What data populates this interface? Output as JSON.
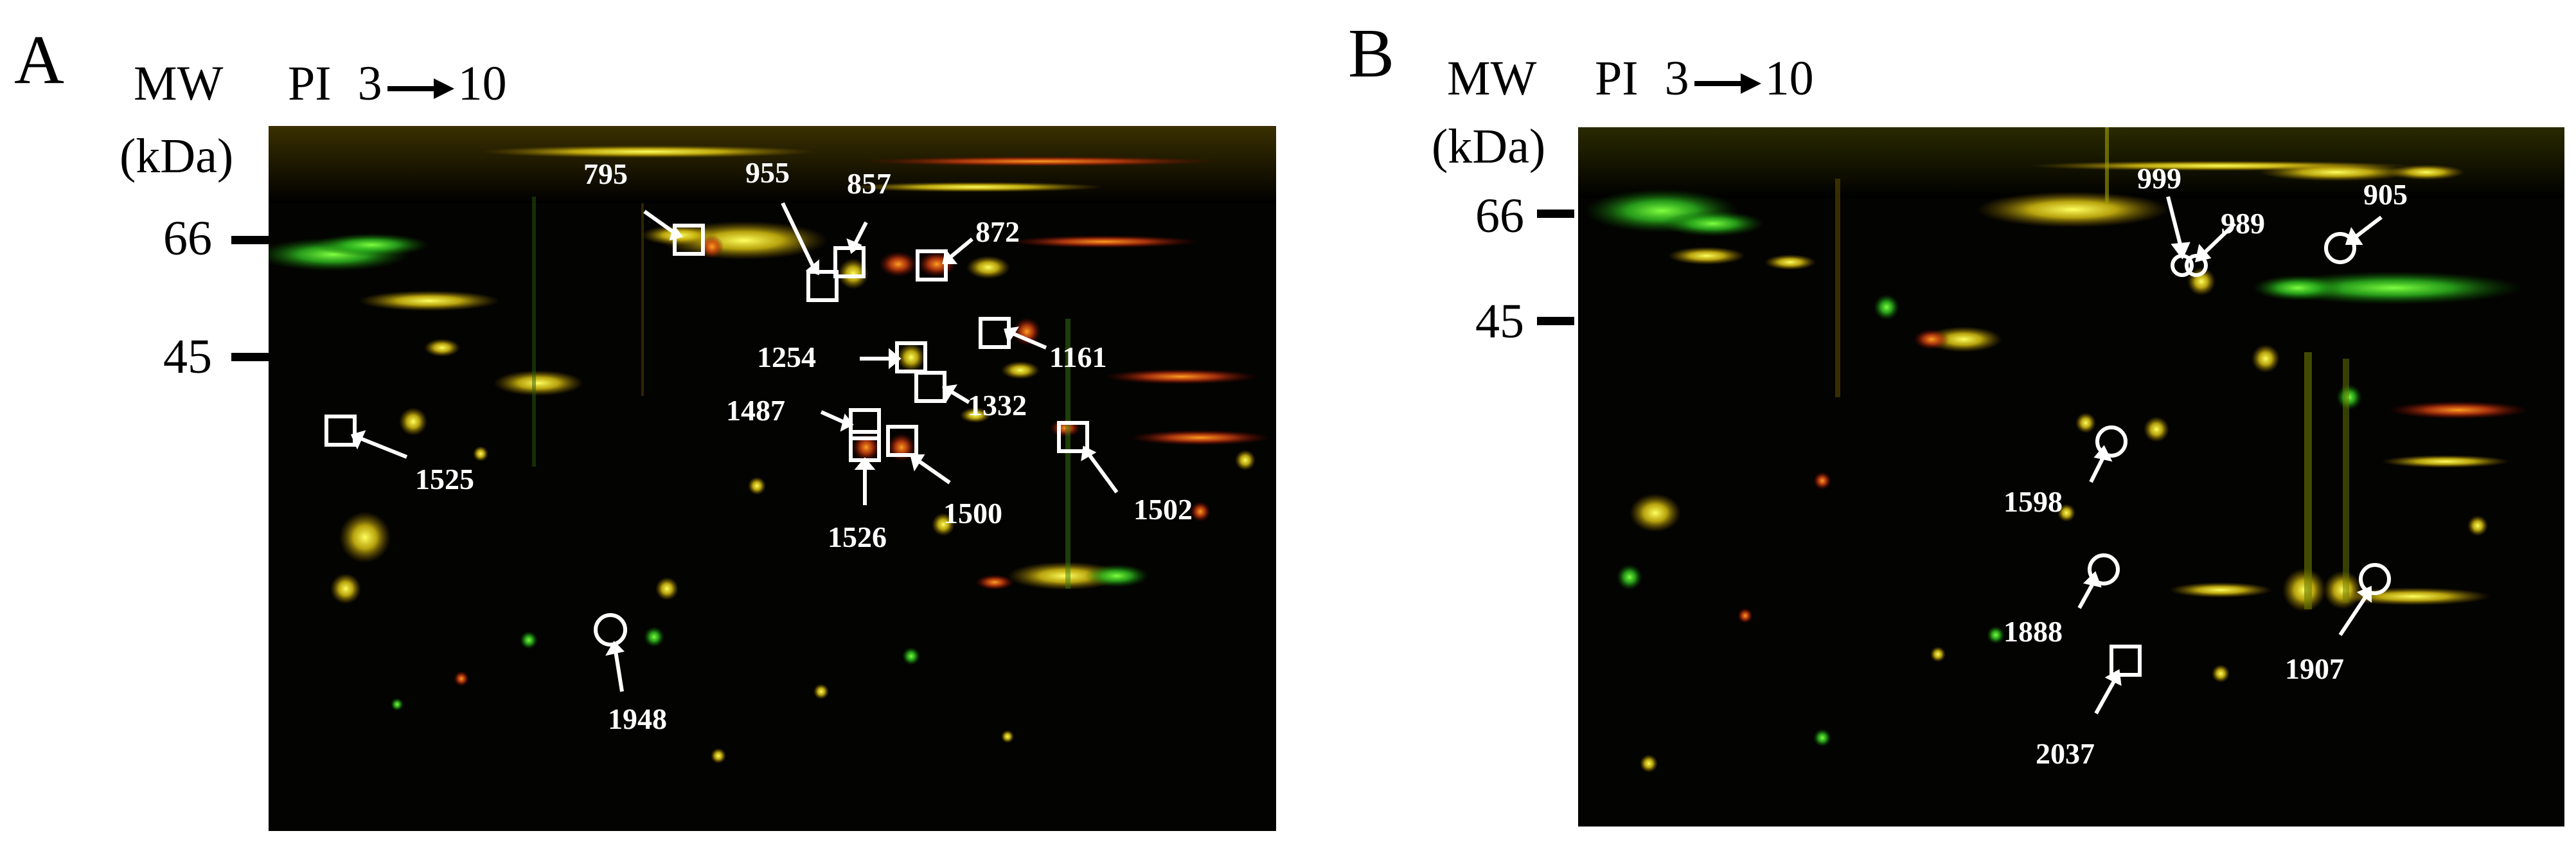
{
  "panels": [
    {
      "letter": "A",
      "mw_label": "MW",
      "kda_label": "(kDa)",
      "pi_label": "PI",
      "pi_start": "3",
      "pi_end": "10",
      "markers": [
        "66",
        "45"
      ],
      "spots": [
        {
          "id": "795",
          "shape": "square"
        },
        {
          "id": "955",
          "shape": "square"
        },
        {
          "id": "857",
          "shape": "square"
        },
        {
          "id": "872",
          "shape": "square"
        },
        {
          "id": "1254",
          "shape": "square"
        },
        {
          "id": "1161",
          "shape": "square"
        },
        {
          "id": "1332",
          "shape": "square"
        },
        {
          "id": "1487",
          "shape": "square"
        },
        {
          "id": "1525",
          "shape": "square"
        },
        {
          "id": "1526",
          "shape": "square"
        },
        {
          "id": "1500",
          "shape": "square"
        },
        {
          "id": "1502",
          "shape": "square"
        },
        {
          "id": "1948",
          "shape": "circle"
        }
      ]
    },
    {
      "letter": "B",
      "mw_label": "MW",
      "kda_label": "(kDa)",
      "pi_label": "PI",
      "pi_start": "3",
      "pi_end": "10",
      "markers": [
        "66",
        "45"
      ],
      "spots": [
        {
          "id": "999",
          "shape": "circle"
        },
        {
          "id": "989",
          "shape": "circle"
        },
        {
          "id": "905",
          "shape": "circle"
        },
        {
          "id": "1598",
          "shape": "circle"
        },
        {
          "id": "1888",
          "shape": "circle"
        },
        {
          "id": "1907",
          "shape": "circle"
        },
        {
          "id": "2037",
          "shape": "square"
        }
      ]
    }
  ]
}
